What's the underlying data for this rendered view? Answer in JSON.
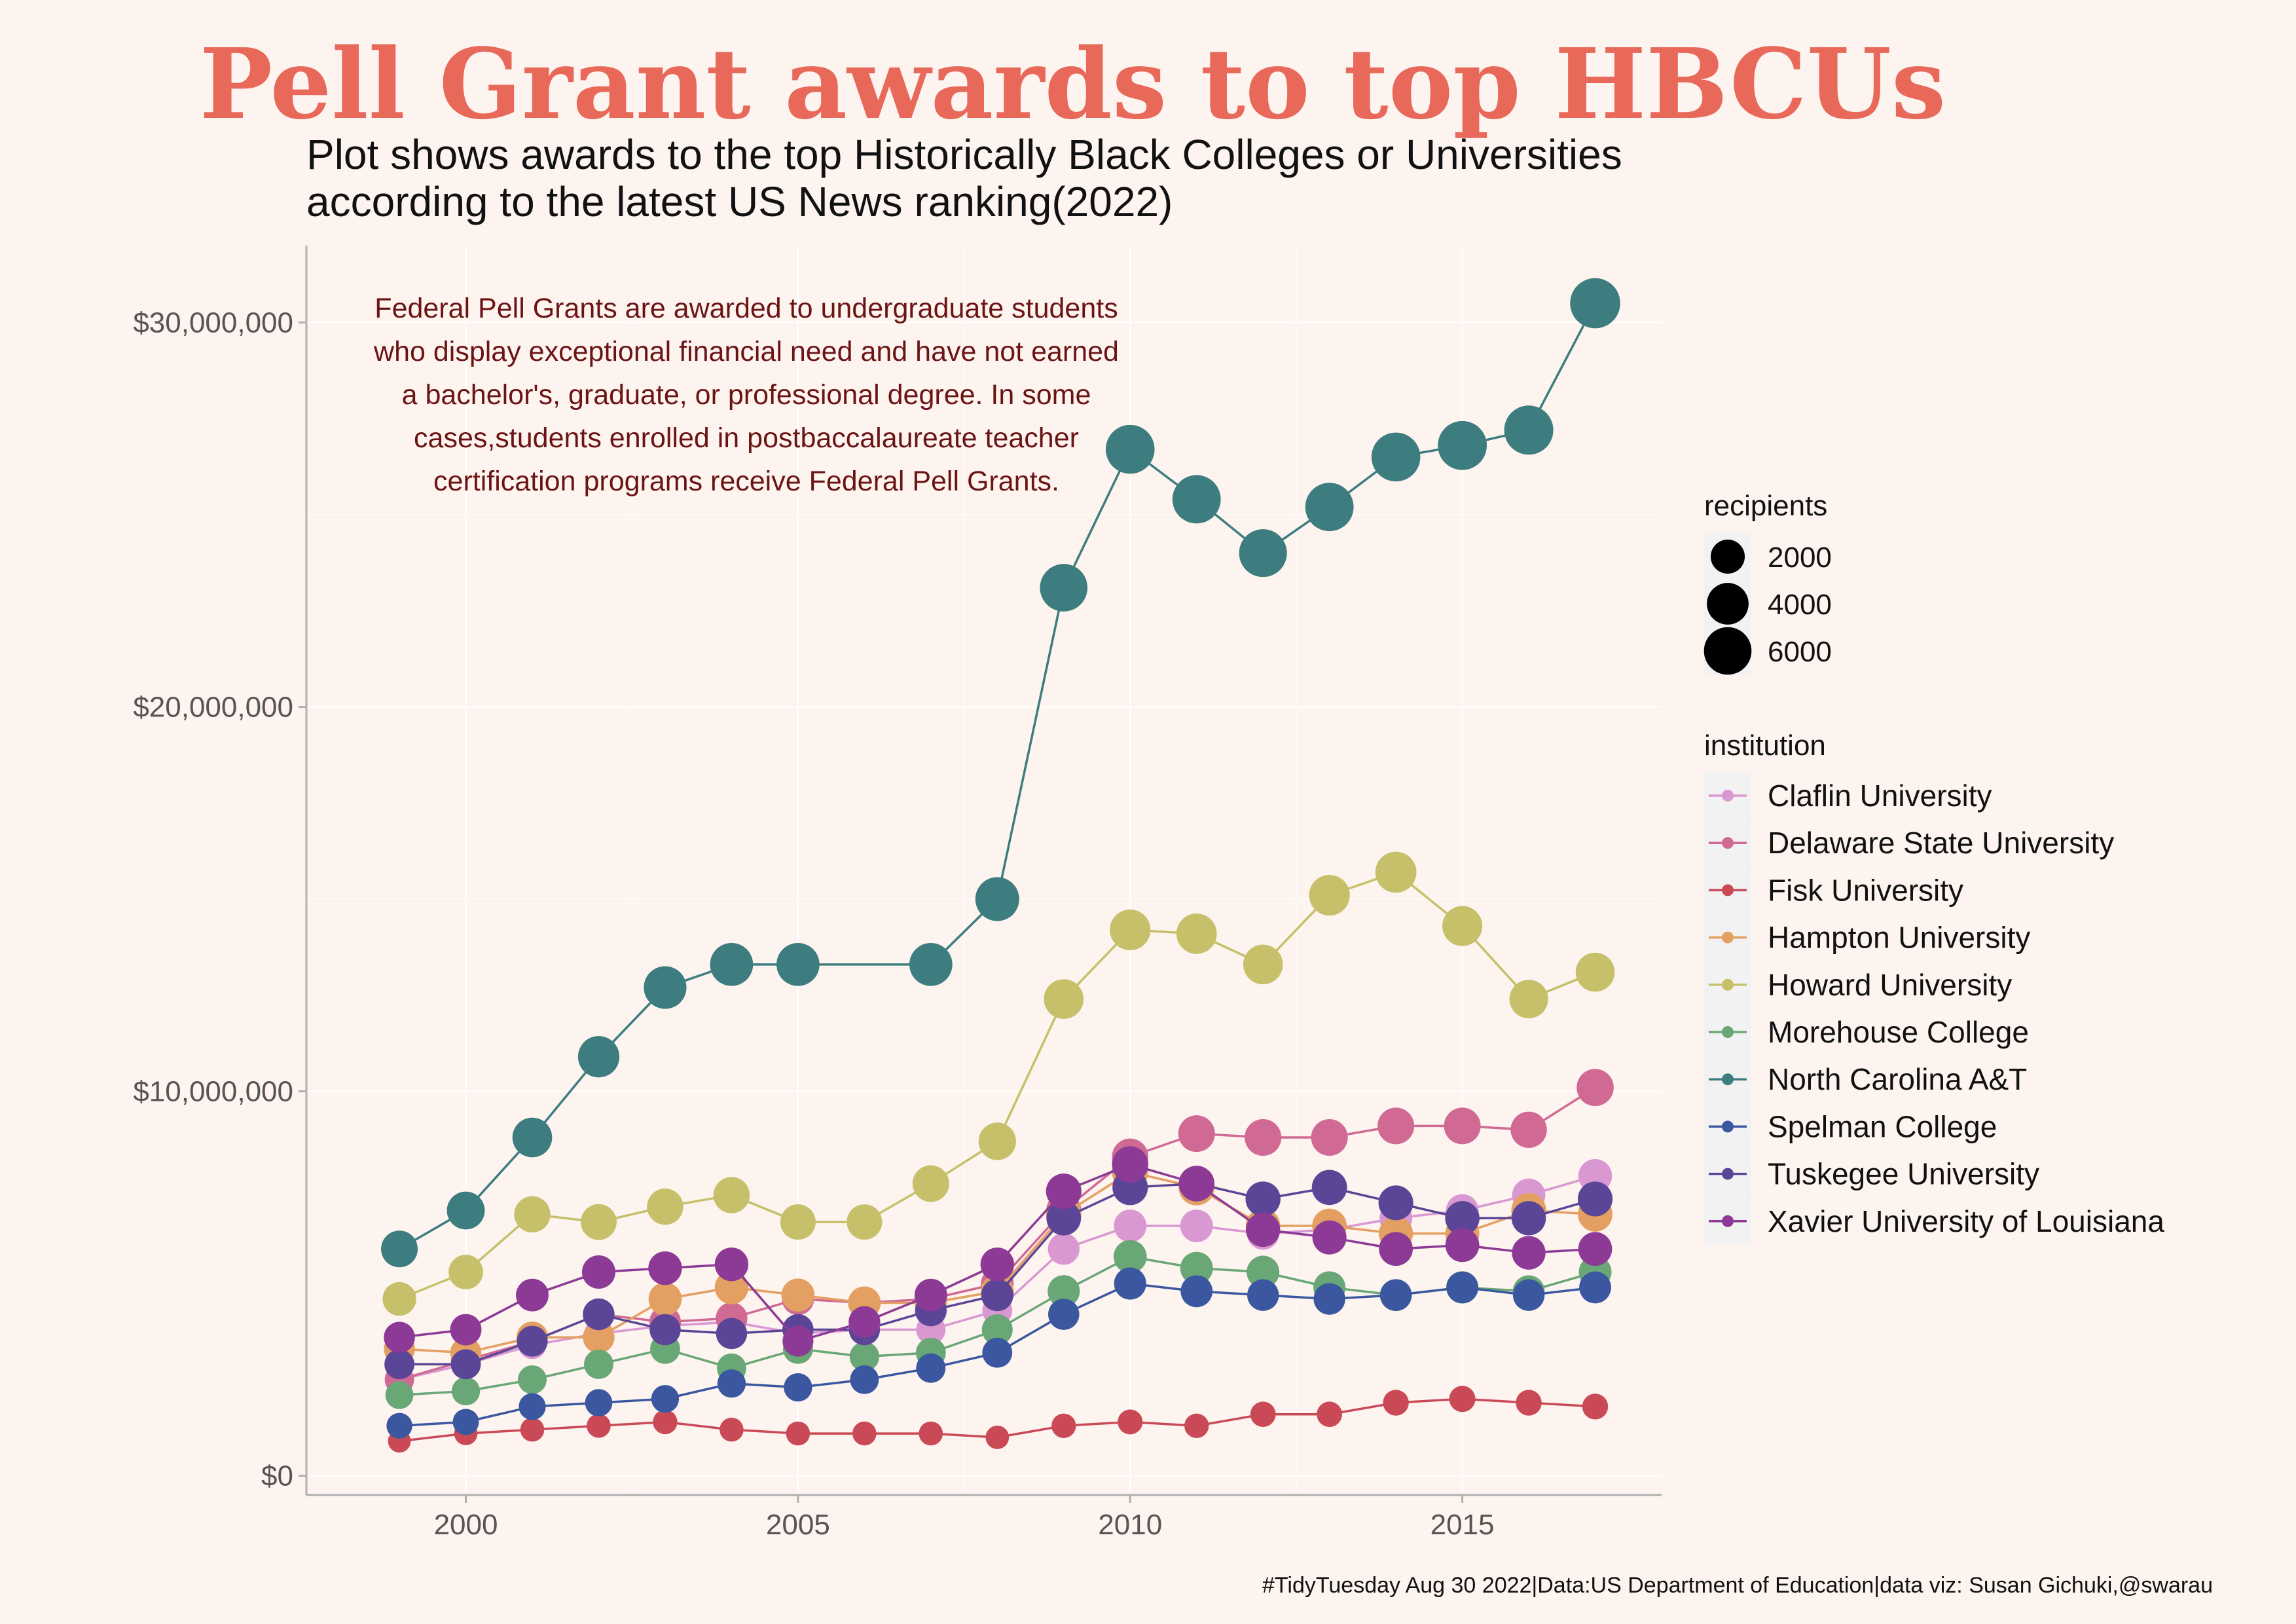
{
  "title": "Pell Grant awards to top HBCUs",
  "subtitle_lines": [
    "Plot shows awards to the top Historically Black Colleges or Universities",
    "according to the latest US News ranking(2022)"
  ],
  "annotation_lines": [
    "Federal Pell Grants are awarded to undergraduate students",
    "who display exceptional financial need and have not earned",
    "a bachelor's, graduate, or professional degree. In some",
    "cases,students enrolled in postbaccalaureate teacher",
    "certification programs receive Federal Pell Grants."
  ],
  "caption": "#TidyTuesday Aug 30 2022|Data:US Department of Education|data viz: Susan Gichuki,@swarau",
  "colors": {
    "background": "#fdf4ef",
    "title": "#e8685a",
    "annotation": "#6b1414",
    "grid": "#ffffff",
    "axis_text": "#555555"
  },
  "legend": {
    "size_title": "recipients",
    "size_entries": [
      {
        "label": "2000",
        "value": 2000
      },
      {
        "label": "4000",
        "value": 4000
      },
      {
        "label": "6000",
        "value": 6000
      }
    ],
    "color_title": "institution"
  },
  "chart_data": {
    "type": "line",
    "xlabel": "",
    "ylabel": "",
    "x_ticks": [
      2000,
      2005,
      2010,
      2015
    ],
    "x_tick_labels": [
      "2000",
      "2005",
      "2010",
      "2015"
    ],
    "y_ticks": [
      0,
      10000000,
      20000000,
      30000000
    ],
    "y_tick_labels": [
      "$0",
      "$10,000,000",
      "$20,000,000",
      "$30,000,000"
    ],
    "xlim": [
      1997.6,
      2018.0
    ],
    "ylim": [
      -500000,
      32000000
    ],
    "grid": true,
    "legend_position": "right",
    "series": [
      {
        "name": "Claflin University",
        "color": "#d998d2",
        "x": [
          1999,
          2000,
          2001,
          2002,
          2003,
          2004,
          2005,
          2006,
          2007,
          2008,
          2009,
          2010,
          2011,
          2012,
          2013,
          2014,
          2015,
          2016,
          2017
        ],
        "y": [
          2500000,
          2900000,
          3400000,
          3700000,
          3900000,
          4000000,
          3700000,
          3800000,
          3800000,
          4300000,
          5900000,
          6500000,
          6500000,
          6300000,
          6400000,
          6700000,
          6900000,
          7300000,
          7800000
        ],
        "recipients": [
          700,
          800,
          900,
          1000,
          1100,
          1100,
          1100,
          1100,
          1100,
          1200,
          1500,
          1700,
          1700,
          1600,
          1600,
          1700,
          1700,
          1800,
          1900
        ]
      },
      {
        "name": "Delaware State University",
        "color": "#d06a95",
        "x": [
          1999,
          2000,
          2001,
          2002,
          2003,
          2004,
          2005,
          2006,
          2007,
          2008,
          2009,
          2010,
          2011,
          2012,
          2013,
          2014,
          2015,
          2016,
          2017
        ],
        "y": [
          2500000,
          3000000,
          3500000,
          4200000,
          4000000,
          4100000,
          4600000,
          4500000,
          4600000,
          5000000,
          6900000,
          8300000,
          8900000,
          8800000,
          8800000,
          9100000,
          9100000,
          9000000,
          10100000
        ],
        "recipients": [
          1100,
          1200,
          1300,
          1500,
          1500,
          1500,
          1600,
          1600,
          1600,
          1700,
          2200,
          2500,
          2600,
          2600,
          2600,
          2600,
          2600,
          2500,
          2700
        ]
      },
      {
        "name": "Fisk University",
        "color": "#c94a56",
        "x": [
          1999,
          2000,
          2001,
          2002,
          2003,
          2004,
          2005,
          2006,
          2007,
          2008,
          2009,
          2010,
          2011,
          2012,
          2013,
          2014,
          2015,
          2016,
          2017
        ],
        "y": [
          900000,
          1100000,
          1200000,
          1300000,
          1400000,
          1200000,
          1100000,
          1100000,
          1100000,
          1000000,
          1300000,
          1400000,
          1300000,
          1600000,
          1600000,
          1900000,
          2000000,
          1900000,
          1800000
        ],
        "recipients": [
          300,
          350,
          400,
          400,
          450,
          400,
          400,
          400,
          400,
          350,
          450,
          500,
          450,
          550,
          550,
          600,
          650,
          600,
          600
        ]
      },
      {
        "name": "Hampton University",
        "color": "#e3a062",
        "x": [
          1999,
          2000,
          2001,
          2002,
          2003,
          2004,
          2005,
          2006,
          2007,
          2008,
          2009,
          2010,
          2011,
          2012,
          2013,
          2014,
          2015,
          2016,
          2017
        ],
        "y": [
          3300000,
          3200000,
          3600000,
          3600000,
          4600000,
          4900000,
          4700000,
          4500000,
          4500000,
          4800000,
          6800000,
          7900000,
          7500000,
          6500000,
          6500000,
          6300000,
          6300000,
          6900000,
          6800000
        ],
        "recipients": [
          1400,
          1400,
          1500,
          1500,
          1800,
          1900,
          1800,
          1700,
          1700,
          1800,
          2300,
          2500,
          2400,
          2100,
          2100,
          2000,
          2000,
          2200,
          2100
        ]
      },
      {
        "name": "Howard University",
        "color": "#c7c06a",
        "x": [
          1999,
          2000,
          2001,
          2002,
          2003,
          2004,
          2005,
          2006,
          2007,
          2008,
          2009,
          2010,
          2011,
          2012,
          2013,
          2014,
          2015,
          2016,
          2017
        ],
        "y": [
          4600000,
          5300000,
          6800000,
          6600000,
          7000000,
          7300000,
          6600000,
          6600000,
          7600000,
          8700000,
          12400000,
          14200000,
          14100000,
          13300000,
          15100000,
          15700000,
          14300000,
          12400000,
          13100000
        ],
        "recipients": [
          1900,
          2100,
          2500,
          2400,
          2500,
          2500,
          2300,
          2300,
          2600,
          2800,
          3400,
          3700,
          3600,
          3400,
          3700,
          3800,
          3500,
          3100,
          3200
        ]
      },
      {
        "name": "Morehouse College",
        "color": "#6aa776",
        "x": [
          1999,
          2000,
          2001,
          2002,
          2003,
          2004,
          2005,
          2006,
          2007,
          2008,
          2009,
          2010,
          2011,
          2012,
          2013,
          2014,
          2015,
          2016,
          2017
        ],
        "y": [
          2100000,
          2200000,
          2500000,
          2900000,
          3300000,
          2800000,
          3300000,
          3100000,
          3200000,
          3800000,
          4800000,
          5700000,
          5400000,
          5300000,
          4900000,
          4700000,
          4900000,
          4800000,
          5300000
        ],
        "recipients": [
          900,
          950,
          1000,
          1100,
          1200,
          1100,
          1200,
          1150,
          1200,
          1350,
          1600,
          1800,
          1700,
          1700,
          1600,
          1550,
          1600,
          1550,
          1700
        ]
      },
      {
        "name": "North Carolina A&T",
        "color": "#3d7d7f",
        "x": [
          1999,
          2000,
          2001,
          2002,
          2003,
          2004,
          2005,
          2007,
          2008,
          2009,
          2010,
          2011,
          2012,
          2013,
          2014,
          2015,
          2016,
          2017
        ],
        "y": [
          5900000,
          6900000,
          8800000,
          10900000,
          12700000,
          13300000,
          13300000,
          13300000,
          15000000,
          23100000,
          26700000,
          25400000,
          24000000,
          25200000,
          26500000,
          26800000,
          27200000,
          30500000
        ],
        "recipients": [
          2600,
          2900,
          3400,
          3900,
          4300,
          4400,
          4400,
          4400,
          4700,
          6000,
          6500,
          6300,
          6100,
          6300,
          6500,
          6550,
          6600,
          7000
        ]
      },
      {
        "name": "Spelman College",
        "color": "#3a57a0",
        "x": [
          1999,
          2000,
          2001,
          2002,
          2003,
          2004,
          2005,
          2006,
          2007,
          2008,
          2009,
          2010,
          2011,
          2012,
          2013,
          2014,
          2015,
          2016,
          2017
        ],
        "y": [
          1300000,
          1400000,
          1800000,
          1900000,
          2000000,
          2400000,
          2300000,
          2500000,
          2800000,
          3200000,
          4200000,
          5000000,
          4800000,
          4700000,
          4600000,
          4700000,
          4900000,
          4700000,
          4900000
        ],
        "recipients": [
          600,
          650,
          750,
          800,
          850,
          950,
          950,
          1000,
          1100,
          1200,
          1400,
          1600,
          1550,
          1500,
          1500,
          1500,
          1550,
          1500,
          1550
        ]
      },
      {
        "name": "Tuskegee University",
        "color": "#5b4596",
        "x": [
          1999,
          2000,
          2001,
          2002,
          2003,
          2004,
          2005,
          2006,
          2007,
          2008,
          2009,
          2010,
          2011,
          2012,
          2013,
          2014,
          2015,
          2016,
          2017
        ],
        "y": [
          2900000,
          2900000,
          3500000,
          4200000,
          3800000,
          3700000,
          3800000,
          3800000,
          4300000,
          4700000,
          6700000,
          7500000,
          7600000,
          7200000,
          7500000,
          7100000,
          6700000,
          6700000,
          7200000
        ],
        "recipients": [
          1200,
          1200,
          1350,
          1500,
          1400,
          1400,
          1400,
          1400,
          1500,
          1600,
          2100,
          2300,
          2300,
          2200,
          2250,
          2150,
          2050,
          2050,
          2150
        ]
      },
      {
        "name": "Xavier University of Louisiana",
        "color": "#8c3a96",
        "x": [
          1999,
          2000,
          2001,
          2002,
          2003,
          2004,
          2005,
          2006,
          2007,
          2008,
          2009,
          2010,
          2011,
          2012,
          2013,
          2014,
          2015,
          2016,
          2017
        ],
        "y": [
          3600000,
          3800000,
          4700000,
          5300000,
          5400000,
          5500000,
          3500000,
          4000000,
          4700000,
          5500000,
          7400000,
          8100000,
          7600000,
          6400000,
          6200000,
          5900000,
          6000000,
          5800000,
          5900000
        ],
        "recipients": [
          1400,
          1450,
          1700,
          1850,
          1900,
          1900,
          1350,
          1500,
          1700,
          1900,
          2300,
          2500,
          2350,
          2050,
          2000,
          1950,
          1950,
          1900,
          1950
        ]
      }
    ]
  }
}
